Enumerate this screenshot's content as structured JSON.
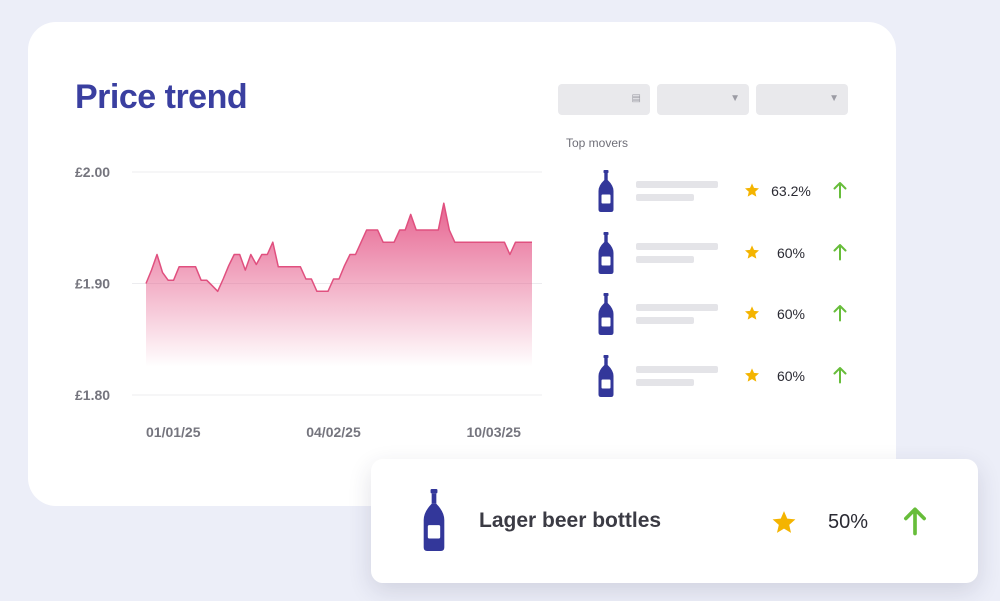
{
  "title": "Price trend",
  "colors": {
    "title": "#3a3fa0",
    "line": "#e0507f",
    "fill_top": "#e55b8a",
    "bottle": "#33379a",
    "star": "#f4b400",
    "arrow_up": "#67bd3a",
    "grid": "#ececef"
  },
  "filters": [
    {
      "icon": "calendar-icon"
    },
    {
      "icon": "chevron-down-icon"
    },
    {
      "icon": "chevron-down-icon"
    }
  ],
  "top_movers": {
    "title": "Top movers",
    "items": [
      {
        "icon": "beer-bottle-icon",
        "rating_icon": "star-icon",
        "change": "63.2%",
        "trend_icon": "arrow-up-icon"
      },
      {
        "icon": "beer-bottle-icon",
        "rating_icon": "star-icon",
        "change": "60%",
        "trend_icon": "arrow-up-icon"
      },
      {
        "icon": "beer-bottle-icon",
        "rating_icon": "star-icon",
        "change": "60%",
        "trend_icon": "arrow-up-icon"
      },
      {
        "icon": "beer-bottle-icon",
        "rating_icon": "star-icon",
        "change": "60%",
        "trend_icon": "arrow-up-icon"
      }
    ]
  },
  "highlight": {
    "icon": "beer-bottle-icon",
    "name": "Lager beer bottles",
    "rating_icon": "star-icon",
    "change": "50%",
    "trend_icon": "arrow-up-icon"
  },
  "chart_data": {
    "type": "area",
    "title": "",
    "xlabel": "",
    "ylabel": "",
    "ylim": [
      1.8,
      2.0
    ],
    "yticks": [
      {
        "value": 2.0,
        "label": "£2.00"
      },
      {
        "value": 1.9,
        "label": "£1.90"
      },
      {
        "value": 1.8,
        "label": "£1.80"
      }
    ],
    "xticks": [
      {
        "index": 0,
        "label": "01/01/25"
      },
      {
        "index": 34,
        "label": "04/02/25"
      },
      {
        "index": 68,
        "label": "10/03/25"
      }
    ],
    "grid": true,
    "values": [
      1.9,
      1.912,
      1.926,
      1.91,
      1.903,
      1.903,
      1.915,
      1.915,
      1.915,
      1.915,
      1.903,
      1.903,
      1.898,
      1.893,
      1.904,
      1.916,
      1.926,
      1.926,
      1.912,
      1.926,
      1.917,
      1.926,
      1.926,
      1.937,
      1.915,
      1.915,
      1.915,
      1.915,
      1.915,
      1.904,
      1.904,
      1.893,
      1.893,
      1.893,
      1.904,
      1.904,
      1.916,
      1.926,
      1.926,
      1.937,
      1.948,
      1.948,
      1.948,
      1.937,
      1.937,
      1.937,
      1.948,
      1.948,
      1.962,
      1.948,
      1.948,
      1.948,
      1.948,
      1.948,
      1.972,
      1.948,
      1.937,
      1.937,
      1.937,
      1.937,
      1.937,
      1.937,
      1.937,
      1.937,
      1.937,
      1.937,
      1.926,
      1.937,
      1.937,
      1.937,
      1.937
    ]
  }
}
